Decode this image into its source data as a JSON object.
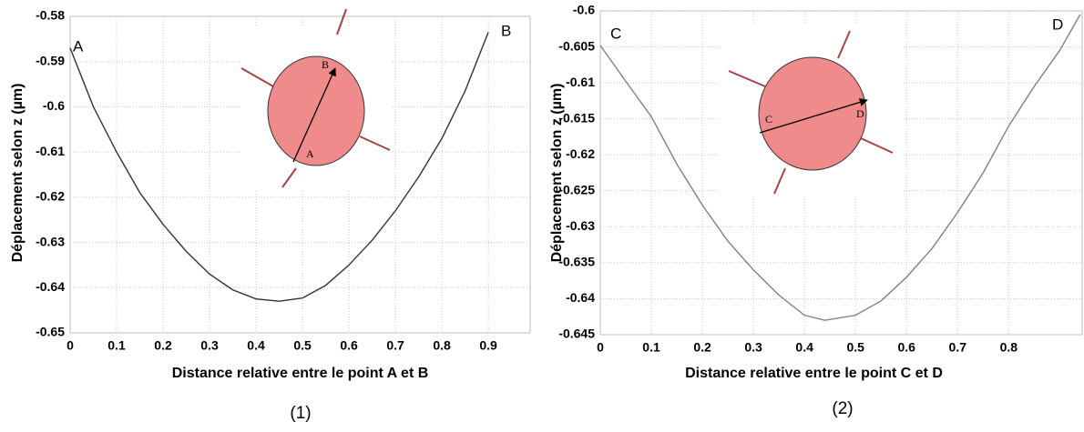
{
  "chart_data": [
    {
      "type": "line",
      "x_label": "Distance relative entre le point A et B",
      "y_label": "Déplacement selon z (µm)",
      "caption": "(1)",
      "x": [
        0,
        0.05,
        0.1,
        0.15,
        0.2,
        0.25,
        0.3,
        0.35,
        0.4,
        0.45,
        0.5,
        0.55,
        0.6,
        0.65,
        0.7,
        0.75,
        0.8,
        0.85,
        0.9
      ],
      "series": [
        {
          "color": "#333333",
          "values": [
            -0.587,
            -0.6,
            -0.61,
            -0.619,
            -0.626,
            -0.632,
            -0.637,
            -0.6405,
            -0.6425,
            -0.643,
            -0.6423,
            -0.6395,
            -0.635,
            -0.6295,
            -0.623,
            -0.6155,
            -0.607,
            -0.5965,
            -0.5835
          ]
        }
      ],
      "xlim": [
        0,
        0.99
      ],
      "ylim": [
        -0.65,
        -0.58
      ],
      "xticks": [
        0,
        0.1,
        0.2,
        0.3,
        0.4,
        0.5,
        0.6,
        0.7,
        0.8,
        0.9
      ],
      "yticks": [
        -0.65,
        -0.64,
        -0.63,
        -0.62,
        -0.61,
        -0.6,
        -0.59,
        -0.58
      ],
      "grid": true,
      "annotations": [
        "A",
        "B"
      ],
      "inset_labels": [
        "A",
        "B"
      ]
    },
    {
      "type": "line",
      "x_label": "Distance relative entre le point C et D",
      "y_label": "Déplacement selon z (µm)",
      "caption": "(2)",
      "x": [
        0,
        0.05,
        0.1,
        0.15,
        0.2,
        0.25,
        0.3,
        0.35,
        0.4,
        0.44,
        0.5,
        0.55,
        0.6,
        0.65,
        0.7,
        0.75,
        0.8,
        0.85,
        0.9,
        0.94
      ],
      "series": [
        {
          "color": "#808080",
          "values": [
            -0.6048,
            -0.6098,
            -0.6147,
            -0.6213,
            -0.627,
            -0.632,
            -0.636,
            -0.6395,
            -0.6423,
            -0.643,
            -0.6423,
            -0.6403,
            -0.637,
            -0.633,
            -0.628,
            -0.6225,
            -0.616,
            -0.6105,
            -0.6055,
            -0.6005
          ]
        }
      ],
      "xlim": [
        0,
        0.944
      ],
      "ylim": [
        -0.645,
        -0.6
      ],
      "xticks": [
        0,
        0.1,
        0.2,
        0.3,
        0.4,
        0.5,
        0.6,
        0.7,
        0.8
      ],
      "yticks": [
        -0.645,
        -0.64,
        -0.635,
        -0.63,
        -0.625,
        -0.62,
        -0.615,
        -0.61,
        -0.605,
        -0.6
      ],
      "grid": true,
      "annotations": [
        "C",
        "D"
      ],
      "inset_labels": [
        "C",
        "D"
      ]
    }
  ]
}
